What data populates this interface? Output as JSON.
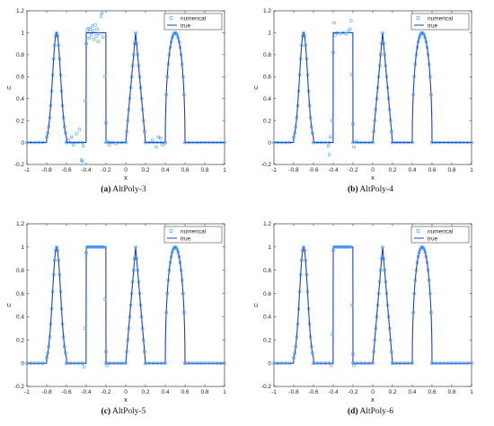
{
  "colors": {
    "numerical": "#3399ff",
    "true": "#1f3fbf",
    "axis": "#222222"
  },
  "panels": [
    {
      "letter": "(a)",
      "name": "AltPoly-3",
      "chart_data": {
        "type": "line",
        "xlabel": "x",
        "ylabel": "u",
        "xlim": [
          -1,
          1
        ],
        "ylim": [
          -0.2,
          1.2
        ],
        "xticks": [
          "-1",
          "-0.8",
          "-0.6",
          "-0.4",
          "-0.2",
          "0",
          "0.2",
          "0.4",
          "0.6",
          "0.8",
          "1"
        ],
        "yticks": [
          "-0.2",
          "0",
          "0.2",
          "0.4",
          "0.6",
          "0.8",
          "1",
          "1.2"
        ],
        "legend": {
          "position": "top-right",
          "entries": [
            "numerical",
            "true"
          ]
        },
        "series": [
          {
            "name": "true",
            "style": "line",
            "function": "four-wave (gaussian, square, triangle, semi-ellipse)"
          },
          {
            "name": "numerical",
            "style": "marker-square",
            "points": [
              [
                -0.58,
                0.02
              ],
              [
                -0.55,
                0.05
              ],
              [
                -0.53,
                -0.02
              ],
              [
                -0.5,
                0.08
              ],
              [
                -0.47,
                0.12
              ],
              [
                -0.45,
                -0.16
              ],
              [
                -0.44,
                -0.17
              ],
              [
                -0.43,
                -0.03
              ],
              [
                -0.41,
                0.38
              ],
              [
                -0.4,
                0.9
              ],
              [
                -0.39,
                1.02
              ],
              [
                -0.38,
                1.04
              ],
              [
                -0.37,
                0.95
              ],
              [
                -0.36,
                1.03
              ],
              [
                -0.35,
                0.98
              ],
              [
                -0.34,
                1.06
              ],
              [
                -0.33,
                1.02
              ],
              [
                -0.32,
                0.94
              ],
              [
                -0.31,
                1.07
              ],
              [
                -0.3,
                0.97
              ],
              [
                -0.29,
                1.03
              ],
              [
                -0.28,
                0.92
              ],
              [
                -0.27,
                0.99
              ],
              [
                -0.25,
                1.15
              ],
              [
                -0.24,
                1.18
              ],
              [
                -0.23,
                0.96
              ],
              [
                -0.21,
                0.6
              ],
              [
                -0.2,
                0.18
              ],
              [
                -0.19,
                0.01
              ],
              [
                -0.17,
                -0.02
              ],
              [
                -0.14,
                0.0
              ],
              [
                -0.1,
                -0.01
              ],
              [
                0.27,
                0.02
              ],
              [
                0.31,
                -0.04
              ],
              [
                0.33,
                0.05
              ],
              [
                0.35,
                0.04
              ],
              [
                0.37,
                -0.02
              ],
              [
                0.39,
                -0.01
              ]
            ]
          }
        ]
      }
    },
    {
      "letter": "(b)",
      "name": "AltPoly-4",
      "chart_data": {
        "type": "line",
        "xlabel": "x",
        "ylabel": "u",
        "xlim": [
          -1,
          1
        ],
        "ylim": [
          -0.2,
          1.2
        ],
        "xticks": [
          "-1",
          "-0.8",
          "-0.6",
          "-0.4",
          "-0.2",
          "0",
          "0.2",
          "0.4",
          "0.6",
          "0.8",
          "1"
        ],
        "yticks": [
          "-0.2",
          "0",
          "0.2",
          "0.4",
          "0.6",
          "0.8",
          "1",
          "1.2"
        ],
        "legend": {
          "position": "top-right",
          "entries": [
            "numerical",
            "true"
          ]
        },
        "series": [
          {
            "name": "true",
            "style": "line",
            "function": "four-wave (gaussian, square, triangle, semi-ellipse)"
          },
          {
            "name": "numerical",
            "style": "marker-square",
            "points": [
              [
                -0.45,
                -0.03
              ],
              [
                -0.44,
                -0.11
              ],
              [
                -0.43,
                0.05
              ],
              [
                -0.41,
                0.2
              ],
              [
                -0.4,
                0.82
              ],
              [
                -0.39,
                1.09
              ],
              [
                -0.38,
                0.98
              ],
              [
                -0.36,
                1.0
              ],
              [
                -0.33,
                0.99
              ],
              [
                -0.3,
                1.0
              ],
              [
                -0.27,
                0.99
              ],
              [
                -0.25,
                1.01
              ],
              [
                -0.23,
                1.03
              ],
              [
                -0.22,
                1.11
              ],
              [
                -0.21,
                0.62
              ],
              [
                -0.2,
                0.17
              ],
              [
                -0.19,
                -0.04
              ],
              [
                -0.17,
                0.01
              ]
            ]
          }
        ]
      }
    },
    {
      "letter": "(c)",
      "name": "AltPoly-5",
      "chart_data": {
        "type": "line",
        "xlabel": "x",
        "ylabel": "u",
        "xlim": [
          -1,
          1
        ],
        "ylim": [
          -0.2,
          1.2
        ],
        "xticks": [
          "-1",
          "-0.8",
          "-0.6",
          "-0.4",
          "-0.2",
          "0",
          "0.2",
          "0.4",
          "0.6",
          "0.8",
          "1"
        ],
        "yticks": [
          "-0.2",
          "0",
          "0.2",
          "0.4",
          "0.6",
          "0.8",
          "1",
          "1.2"
        ],
        "legend": {
          "position": "top-right",
          "entries": [
            "numerical",
            "true"
          ]
        },
        "series": [
          {
            "name": "true",
            "style": "line",
            "function": "four-wave (gaussian, square, triangle, semi-ellipse)"
          },
          {
            "name": "numerical",
            "style": "marker-square",
            "points": [
              [
                -0.42,
                -0.03
              ],
              [
                -0.41,
                0.3
              ],
              [
                -0.4,
                0.95
              ],
              [
                -0.21,
                0.55
              ],
              [
                -0.2,
                0.1
              ],
              [
                -0.19,
                -0.02
              ]
            ]
          }
        ]
      }
    },
    {
      "letter": "(d)",
      "name": "AltPoly-6",
      "chart_data": {
        "type": "line",
        "xlabel": "x",
        "ylabel": "u",
        "xlim": [
          -1,
          1
        ],
        "ylim": [
          -0.2,
          1.2
        ],
        "xticks": [
          "-1",
          "-0.8",
          "-0.6",
          "-0.4",
          "-0.2",
          "0",
          "0.2",
          "0.4",
          "0.6",
          "0.8",
          "1"
        ],
        "yticks": [
          "-0.2",
          "0",
          "0.2",
          "0.4",
          "0.6",
          "0.8",
          "1",
          "1.2"
        ],
        "legend": {
          "position": "top-right",
          "entries": [
            "numerical",
            "true"
          ]
        },
        "series": [
          {
            "name": "true",
            "style": "line",
            "function": "four-wave (gaussian, square, triangle, semi-ellipse)"
          },
          {
            "name": "numerical",
            "style": "marker-square",
            "points": [
              [
                -0.42,
                -0.02
              ],
              [
                -0.41,
                0.25
              ],
              [
                -0.4,
                0.97
              ],
              [
                -0.21,
                0.5
              ],
              [
                -0.2,
                0.08
              ],
              [
                -0.19,
                -0.02
              ]
            ]
          }
        ]
      }
    }
  ]
}
